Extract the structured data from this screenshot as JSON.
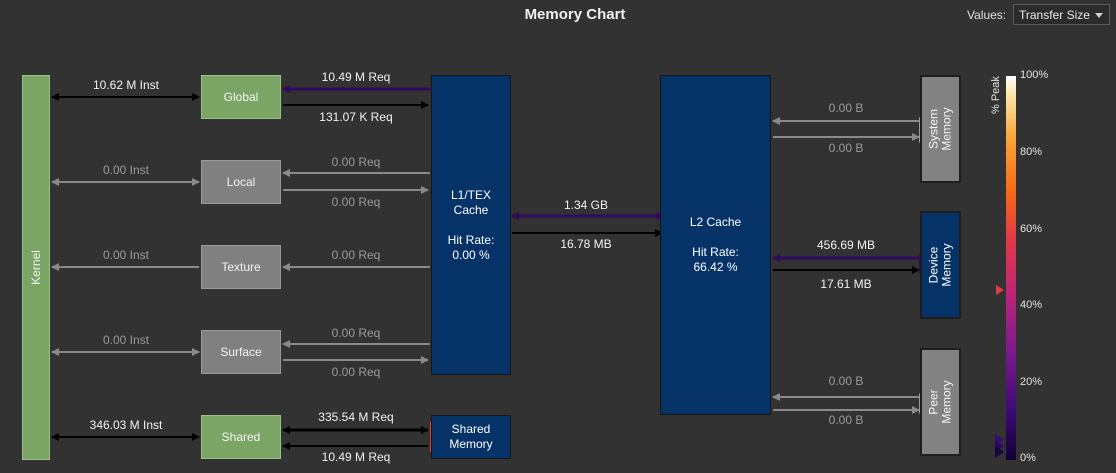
{
  "title": "Memory Chart",
  "values_control": {
    "label": "Values:",
    "selected": "Transfer Size"
  },
  "units": {
    "kernel": "Kernel",
    "global": "Global",
    "local": "Local",
    "texture": "Texture",
    "surface": "Surface",
    "shared": "Shared",
    "l1": "L1/TEX\nCache\n\nHit Rate:\n0.00 %",
    "shared_memory": "Shared\nMemory",
    "l2": "L2 Cache\n\nHit Rate:\n66.42 %",
    "system_memory": "System\nMemory",
    "device_memory": "Device\nMemory",
    "peer_memory": "Peer\nMemory"
  },
  "links": {
    "kernel_global": "10.62 M Inst",
    "kernel_local": "0.00 Inst",
    "kernel_texture": "0.00 Inst",
    "kernel_surface": "0.00 Inst",
    "kernel_shared": "346.03 M Inst",
    "global_l1_req": "10.49 M Req",
    "global_l1_ret": "131.07 K Req",
    "local_l1_req": "0.00 Req",
    "local_l1_ret": "0.00 Req",
    "texture_l1": "0.00 Req",
    "surface_l1_req": "0.00 Req",
    "surface_l1_ret": "0.00 Req",
    "shared_sm_req": "335.54 M Req",
    "shared_sm_ret": "10.49 M Req",
    "l1_l2_in": "1.34 GB",
    "l1_l2_out": "16.78 MB",
    "l2_sys_in": "0.00 B",
    "l2_sys_out": "0.00 B",
    "l2_dev_in": "456.69 MB",
    "l2_dev_out": "17.61 MB",
    "l2_peer_in": "0.00 B",
    "l2_peer_out": "0.00 B"
  },
  "legend": {
    "title": "% Peak",
    "ticks": [
      "100%",
      "80%",
      "60%",
      "40%",
      "20%",
      "0%"
    ]
  },
  "colors": {
    "background": "#323232",
    "kernel_green": "#7ba565",
    "cache_blue": "#053368",
    "unit_gray": "#808080",
    "active_link": "#000000",
    "hot_link": "#2e0a5e",
    "idle_link": "#8a8a8a",
    "hot_marker": "#e23b44"
  }
}
